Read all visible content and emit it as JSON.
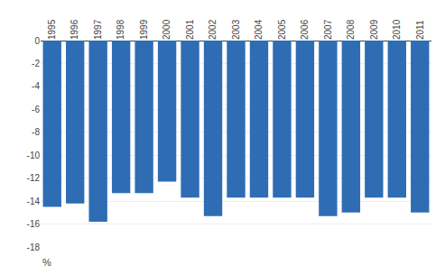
{
  "chart_data": {
    "type": "bar",
    "categories": [
      "1995",
      "1996",
      "1997",
      "1998",
      "1999",
      "2000",
      "2001",
      "2002",
      "2003",
      "2004",
      "2005",
      "2006",
      "2007",
      "2008",
      "2009",
      "2010",
      "2011"
    ],
    "values": [
      -14.5,
      -14.2,
      -15.8,
      -13.3,
      -13.3,
      -12.3,
      -13.7,
      -15.3,
      -13.7,
      -13.7,
      -13.7,
      -13.7,
      -15.3,
      -15.0,
      -13.7,
      -13.7,
      -15.0
    ],
    "color": "#2E6DB4",
    "ylim": [
      -18,
      0
    ],
    "yticks": [
      0,
      -2,
      -4,
      -6,
      -8,
      -10,
      -12,
      -14,
      -16,
      -18
    ],
    "grid": true,
    "ylabel": "%"
  }
}
